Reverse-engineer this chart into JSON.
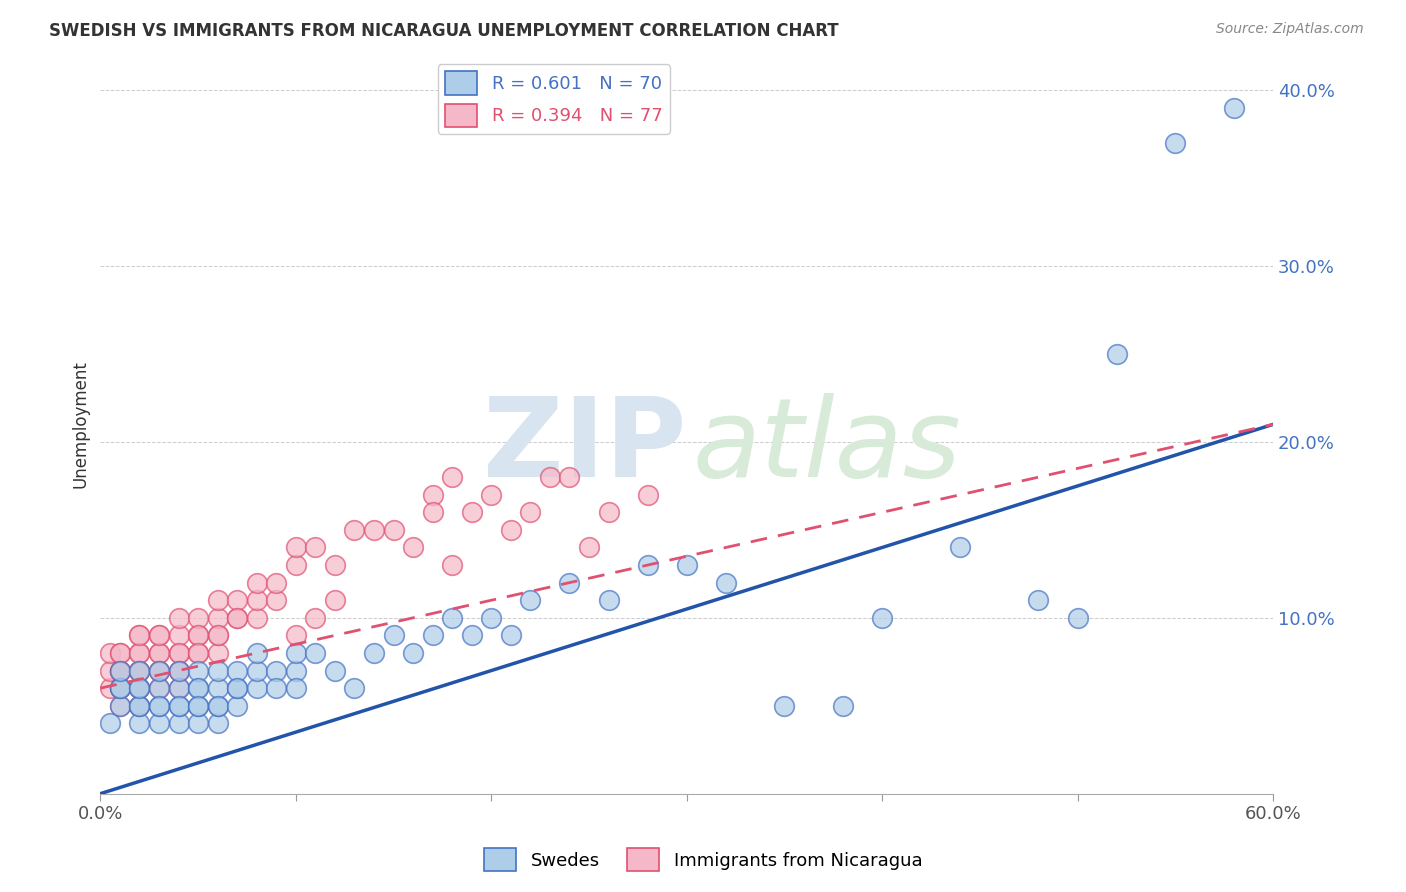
{
  "title": "SWEDISH VS IMMIGRANTS FROM NICARAGUA UNEMPLOYMENT CORRELATION CHART",
  "source": "Source: ZipAtlas.com",
  "ylabel": "Unemployment",
  "swede_color": "#aecde8",
  "swede_edge_color": "#4472c4",
  "nicaragua_color": "#f4b8c8",
  "nicaragua_edge_color": "#e05070",
  "swede_line_color": "#2255aa",
  "nicaragua_line_color": "#e05070",
  "watermark_zip_color": "#d8e4f0",
  "watermark_atlas_color": "#d8ead8",
  "background_color": "#ffffff",
  "xlim": [
    0.0,
    0.6
  ],
  "ylim": [
    0.0,
    0.42
  ],
  "xtick_vals": [
    0.0,
    0.1,
    0.2,
    0.3,
    0.4,
    0.5,
    0.6
  ],
  "ytick_vals": [
    0.0,
    0.1,
    0.2,
    0.3,
    0.4
  ],
  "ytick_labels": [
    "",
    "10.0%",
    "20.0%",
    "30.0%",
    "40.0%"
  ],
  "sw_line_x0": 0.0,
  "sw_line_y0": 0.0,
  "sw_line_x1": 0.6,
  "sw_line_y1": 0.21,
  "nic_line_x0": 0.0,
  "nic_line_y0": 0.06,
  "nic_line_x1": 0.6,
  "nic_line_y1": 0.21,
  "swedes_x": [
    0.005,
    0.01,
    0.01,
    0.01,
    0.01,
    0.02,
    0.02,
    0.02,
    0.02,
    0.02,
    0.02,
    0.03,
    0.03,
    0.03,
    0.03,
    0.03,
    0.04,
    0.04,
    0.04,
    0.04,
    0.04,
    0.05,
    0.05,
    0.05,
    0.05,
    0.05,
    0.05,
    0.06,
    0.06,
    0.06,
    0.06,
    0.06,
    0.07,
    0.07,
    0.07,
    0.07,
    0.08,
    0.08,
    0.08,
    0.09,
    0.09,
    0.1,
    0.1,
    0.1,
    0.11,
    0.12,
    0.13,
    0.14,
    0.15,
    0.16,
    0.17,
    0.18,
    0.19,
    0.2,
    0.21,
    0.22,
    0.24,
    0.26,
    0.28,
    0.3,
    0.32,
    0.35,
    0.38,
    0.4,
    0.44,
    0.48,
    0.5,
    0.52,
    0.55,
    0.58
  ],
  "swedes_y": [
    0.04,
    0.05,
    0.06,
    0.06,
    0.07,
    0.04,
    0.05,
    0.06,
    0.07,
    0.05,
    0.06,
    0.04,
    0.05,
    0.06,
    0.07,
    0.05,
    0.04,
    0.05,
    0.06,
    0.07,
    0.05,
    0.04,
    0.05,
    0.06,
    0.07,
    0.06,
    0.05,
    0.04,
    0.05,
    0.06,
    0.07,
    0.05,
    0.05,
    0.06,
    0.07,
    0.06,
    0.06,
    0.07,
    0.08,
    0.07,
    0.06,
    0.07,
    0.08,
    0.06,
    0.08,
    0.07,
    0.06,
    0.08,
    0.09,
    0.08,
    0.09,
    0.1,
    0.09,
    0.1,
    0.09,
    0.11,
    0.12,
    0.11,
    0.13,
    0.13,
    0.12,
    0.05,
    0.05,
    0.1,
    0.14,
    0.11,
    0.1,
    0.25,
    0.37,
    0.39
  ],
  "nicaragua_x": [
    0.005,
    0.005,
    0.005,
    0.01,
    0.01,
    0.01,
    0.01,
    0.01,
    0.01,
    0.01,
    0.01,
    0.02,
    0.02,
    0.02,
    0.02,
    0.02,
    0.02,
    0.02,
    0.02,
    0.02,
    0.02,
    0.03,
    0.03,
    0.03,
    0.03,
    0.03,
    0.03,
    0.03,
    0.04,
    0.04,
    0.04,
    0.04,
    0.04,
    0.04,
    0.04,
    0.05,
    0.05,
    0.05,
    0.05,
    0.05,
    0.06,
    0.06,
    0.06,
    0.06,
    0.06,
    0.07,
    0.07,
    0.07,
    0.08,
    0.08,
    0.08,
    0.09,
    0.09,
    0.1,
    0.1,
    0.1,
    0.11,
    0.11,
    0.12,
    0.12,
    0.13,
    0.14,
    0.15,
    0.16,
    0.17,
    0.17,
    0.18,
    0.18,
    0.19,
    0.2,
    0.21,
    0.22,
    0.23,
    0.24,
    0.25,
    0.26,
    0.28
  ],
  "nicaragua_y": [
    0.06,
    0.07,
    0.08,
    0.05,
    0.06,
    0.07,
    0.08,
    0.07,
    0.06,
    0.08,
    0.07,
    0.05,
    0.06,
    0.07,
    0.08,
    0.09,
    0.07,
    0.06,
    0.08,
    0.09,
    0.07,
    0.06,
    0.07,
    0.08,
    0.09,
    0.08,
    0.07,
    0.09,
    0.06,
    0.07,
    0.08,
    0.09,
    0.1,
    0.08,
    0.07,
    0.08,
    0.09,
    0.1,
    0.09,
    0.08,
    0.08,
    0.09,
    0.1,
    0.11,
    0.09,
    0.1,
    0.11,
    0.1,
    0.1,
    0.11,
    0.12,
    0.11,
    0.12,
    0.09,
    0.13,
    0.14,
    0.1,
    0.14,
    0.11,
    0.13,
    0.15,
    0.15,
    0.15,
    0.14,
    0.17,
    0.16,
    0.13,
    0.18,
    0.16,
    0.17,
    0.15,
    0.16,
    0.18,
    0.18,
    0.14,
    0.16,
    0.17
  ]
}
